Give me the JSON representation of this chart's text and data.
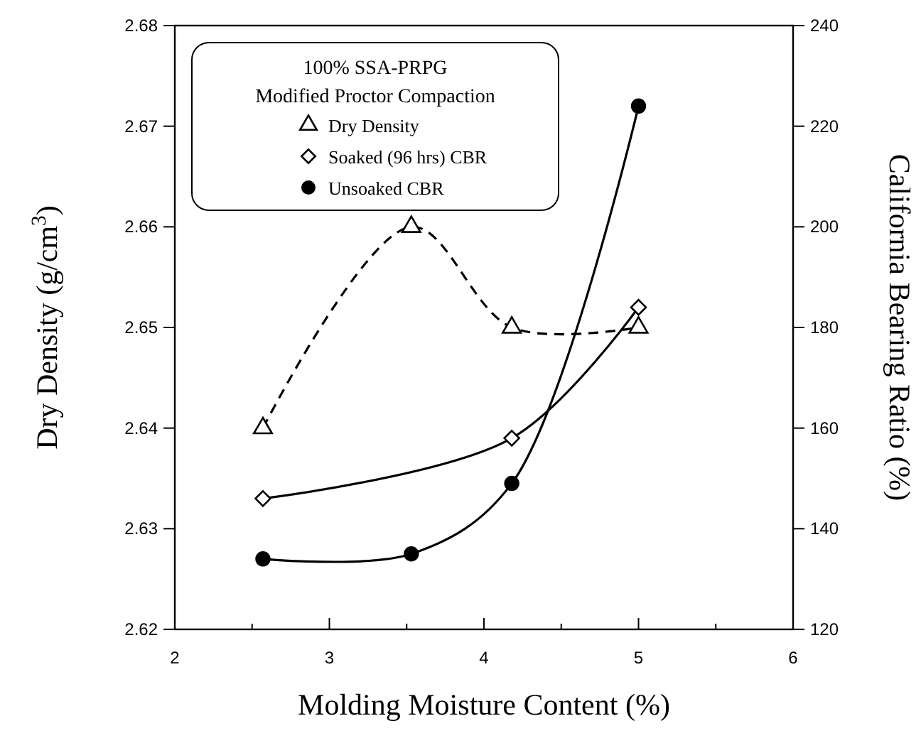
{
  "chart_data": {
    "type": "line",
    "xlabel": "Molding Moisture Content (%)",
    "ylabel": "Dry Density (g/cm$^{3}$)",
    "y2label": "California Bearing Ratio (%)",
    "legend_title": "100% SSA-PRPG\nModified Proctor Compaction",
    "legend": "top left",
    "xlim": [
      2,
      6
    ],
    "xticks": [
      2,
      {
        "value": 2.5,
        "label": null
      },
      3,
      {
        "value": 3.5,
        "label": null
      },
      4,
      {
        "value": 4.5,
        "label": null
      },
      5,
      {
        "value": 5.5,
        "label": null
      },
      6
    ],
    "ylim": [
      2.62,
      2.68
    ],
    "yticks": [
      2.62,
      2.63,
      2.64,
      2.65,
      2.66,
      2.67,
      2.68
    ],
    "y2lim": [
      120,
      240
    ],
    "y2ticks": [
      120,
      140,
      160,
      180,
      200,
      220,
      240
    ],
    "grid": false,
    "series": [
      {
        "name": "Dry Density",
        "color": "#000000",
        "marker": "triangle",
        "line_style": "dashed",
        "x": [
          2.57,
          3.53,
          4.18,
          5.0
        ],
        "values": [
          2.64,
          2.66,
          2.65,
          2.65
        ]
      },
      {
        "name": "Soaked (96 hrs) CBR",
        "color": "#000000",
        "marker": "diamond",
        "line_style": "solid",
        "axis": "y2",
        "x": [
          2.57,
          4.18,
          5.0
        ],
        "values": [
          146,
          158,
          184
        ]
      },
      {
        "name": "Unsoaked CBR",
        "color": "#000000",
        "marker": "circle",
        "line_style": "solid",
        "axis": "y2",
        "x": [
          2.57,
          3.53,
          4.18,
          5.0
        ],
        "values": [
          134,
          135,
          149,
          224
        ]
      }
    ]
  }
}
